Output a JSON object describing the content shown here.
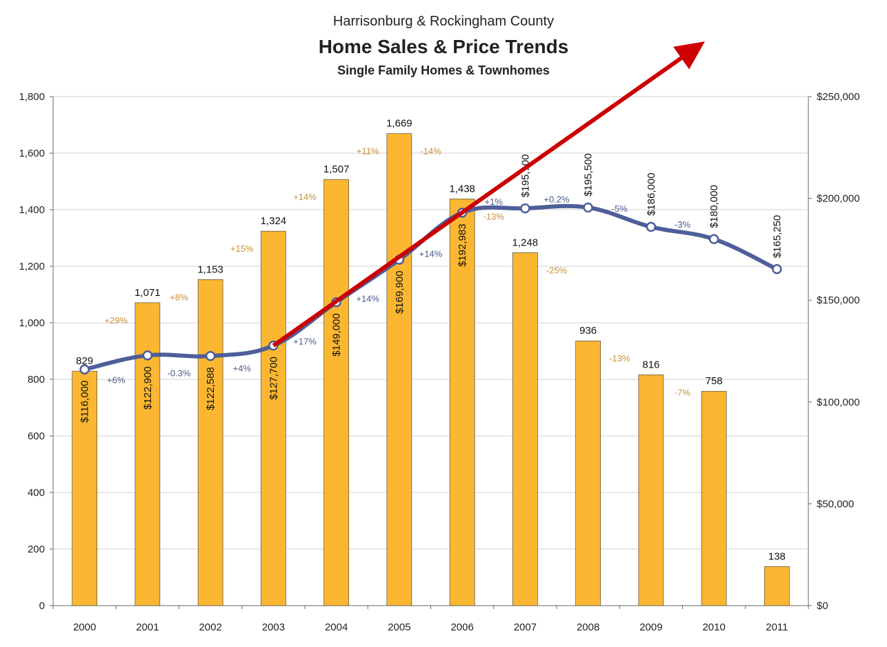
{
  "title": {
    "super": "Harrisonburg & Rockingham County",
    "main": "Home Sales & Price Trends",
    "sub": "Single Family Homes & Townhomes"
  },
  "colors": {
    "bar": "#FBB731",
    "line": "#4E5E99",
    "arrow": "#CC0000",
    "grid": "#D0D0D0",
    "sales_pct": "#C8903A",
    "price_pct": "#4A5A8C"
  },
  "chart_data": {
    "type": "bar",
    "categories": [
      "2000",
      "2001",
      "2002",
      "2003",
      "2004",
      "2005",
      "2006",
      "2007",
      "2008",
      "2009",
      "2010",
      "2011"
    ],
    "series": [
      {
        "values": [
          829,
          1071,
          1153,
          1324,
          1507,
          1669,
          1438,
          1248,
          936,
          816,
          758,
          138
        ],
        "labels": [
          "829",
          "1,071",
          "1,153",
          "1,324",
          "1,507",
          "1,669",
          "1,438",
          "1,248",
          "936",
          "816",
          "758",
          "138"
        ],
        "change_labels": [
          "+29%",
          "+8%",
          "+15%",
          "+14%",
          "+11%",
          "-14%",
          "-13%",
          "-25%",
          "-13%",
          "-7%"
        ],
        "axis": "left"
      },
      {
        "values": [
          116000,
          122900,
          122588,
          127700,
          149000,
          169900,
          192983,
          195100,
          195500,
          186000,
          180000,
          165250
        ],
        "labels": [
          "$116,000",
          "$122,900",
          "$122,588",
          "$127,700",
          "$149,000",
          "$169,900",
          "$192,983",
          "$195,100",
          "$195,500",
          "$186,000",
          "$180,000",
          "$165,250"
        ],
        "change_labels": [
          "+6%",
          "-0.3%",
          "+4%",
          "+17%",
          "+14%",
          "+14%",
          "+1%",
          "+0.2%",
          "-5%",
          "-3%"
        ],
        "axis": "right",
        "type": "line"
      }
    ],
    "y_left": {
      "ylim": [
        0,
        1800
      ],
      "ticks": [
        "0",
        "200",
        "400",
        "600",
        "800",
        "1,000",
        "1,200",
        "1,400",
        "1,600",
        "1,800"
      ]
    },
    "y_right": {
      "ylim": [
        0,
        250000
      ],
      "ticks": [
        "$0",
        "$50,000",
        "$100,000",
        "$150,000",
        "$200,000",
        "$250,000"
      ]
    },
    "grid": true,
    "legend": "none",
    "annotation": "red arrow rising from 2003 price point to top-right"
  }
}
